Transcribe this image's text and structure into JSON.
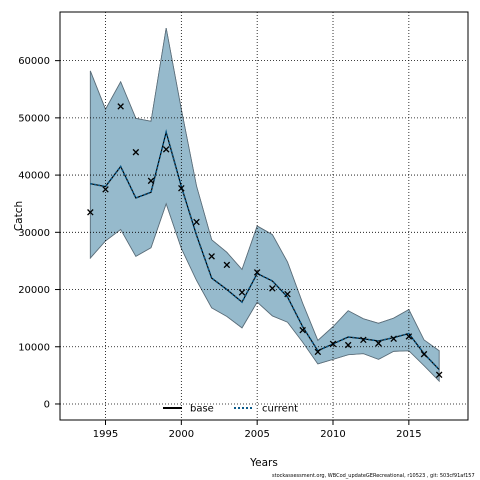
{
  "chart_data": {
    "type": "line",
    "xlabel": "Years",
    "ylabel": "Catch",
    "xlim": [
      1992.0,
      2018.9
    ],
    "ylim": [
      -2800,
      68500
    ],
    "x_ticks": [
      1995,
      2000,
      2005,
      2010,
      2015
    ],
    "y_ticks": [
      0,
      10000,
      20000,
      30000,
      40000,
      50000,
      60000
    ],
    "grid": true,
    "legend_position": "bottom-center",
    "x": [
      1994,
      1995,
      1996,
      1997,
      1998,
      1999,
      2000,
      2001,
      2002,
      2003,
      2004,
      2005,
      2006,
      2007,
      2008,
      2009,
      2010,
      2011,
      2012,
      2013,
      2014,
      2015,
      2016,
      2017
    ],
    "observed": {
      "marker": "x",
      "values": [
        33500,
        37500,
        52000,
        44000,
        39000,
        44500,
        37700,
        31800,
        25800,
        24300,
        19500,
        23000,
        20200,
        19200,
        12900,
        9100,
        10500,
        10300,
        11200,
        10600,
        11400,
        11800,
        8700,
        5100
      ]
    },
    "series": [
      {
        "name": "base",
        "style": "solid",
        "color": "#000000",
        "values": [
          38500,
          38000,
          41500,
          36000,
          37000,
          47500,
          38000,
          29500,
          22000,
          20000,
          17800,
          22800,
          21500,
          18700,
          13500,
          9300,
          10500,
          11700,
          11400,
          11000,
          11600,
          12300,
          8800,
          6000
        ],
        "lower": [
          25500,
          28500,
          30500,
          25800,
          27300,
          35000,
          27200,
          21600,
          16800,
          15300,
          13300,
          17800,
          15400,
          14300,
          10800,
          7000,
          7800,
          8600,
          8800,
          7800,
          9200,
          9300,
          6700,
          4000
        ],
        "upper": [
          58200,
          51500,
          56300,
          49900,
          49400,
          65700,
          51500,
          38100,
          28700,
          26500,
          23500,
          31100,
          29600,
          24800,
          17600,
          11100,
          13500,
          16300,
          14900,
          14100,
          15000,
          16500,
          11200,
          9300
        ]
      },
      {
        "name": "current",
        "style": "dotted",
        "color": "#0a5a8a",
        "values": [
          38500,
          38000,
          41500,
          36000,
          37000,
          47500,
          38000,
          29500,
          22000,
          20000,
          17800,
          22800,
          21500,
          18700,
          13500,
          9300,
          10500,
          11700,
          11400,
          11000,
          11600,
          12300,
          8800,
          6000
        ],
        "lower": [
          25500,
          28500,
          30500,
          25800,
          27300,
          35000,
          27200,
          21600,
          16800,
          15300,
          13300,
          17800,
          15400,
          14300,
          10800,
          7000,
          7800,
          8600,
          8800,
          7800,
          9200,
          9300,
          6700,
          4000
        ],
        "upper": [
          58200,
          51500,
          56300,
          49900,
          49400,
          65700,
          51500,
          38100,
          28700,
          26500,
          23500,
          31100,
          29600,
          24800,
          17600,
          11100,
          13500,
          16300,
          14900,
          14100,
          15000,
          16500,
          11200,
          9300
        ]
      }
    ],
    "colors": {
      "band_base": "#7ba3b5",
      "band_current": "#a9cde0",
      "band_edge": "#5b6e7a",
      "grid": "#000000"
    }
  },
  "footer": "stockassessment.org, WBCod_updateGERecreational, r10523 , git: 503cf91af157"
}
